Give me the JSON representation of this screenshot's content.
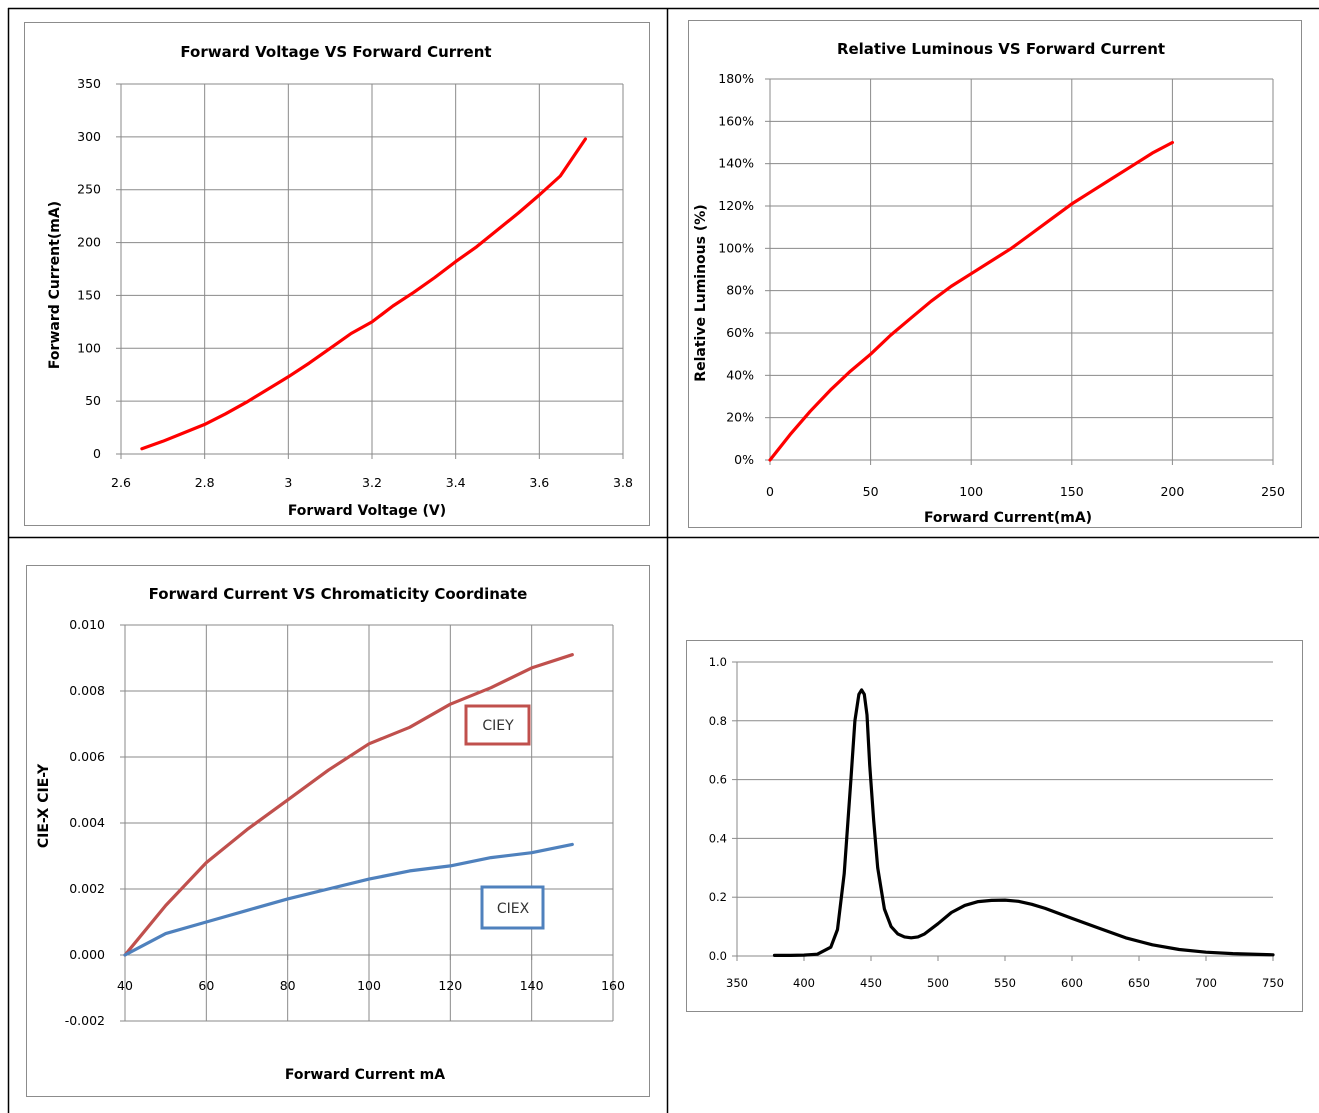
{
  "chart_data": [
    {
      "type": "line",
      "title": "Forward Voltage VS Forward Current",
      "xlabel": "Forward Voltage  (V)",
      "ylabel": "Forward Current(mA)",
      "xlim": [
        2.6,
        3.8
      ],
      "ylim": [
        0,
        350
      ],
      "xticks": [
        "2.6",
        "2.8",
        "3",
        "3.2",
        "3.4",
        "3.6",
        "3.8"
      ],
      "yticks": [
        "0",
        "50",
        "100",
        "150",
        "200",
        "250",
        "300",
        "350"
      ],
      "grid": true,
      "series": [
        {
          "color": "#ff0000",
          "x": [
            2.65,
            2.7,
            2.75,
            2.8,
            2.85,
            2.9,
            2.95,
            3.0,
            3.05,
            3.1,
            3.15,
            3.2,
            3.25,
            3.3,
            3.35,
            3.4,
            3.45,
            3.5,
            3.55,
            3.6,
            3.65,
            3.71
          ],
          "y": [
            5,
            12,
            20,
            28,
            38,
            49,
            61,
            73,
            86,
            100,
            114,
            125,
            140,
            153,
            167,
            182,
            196,
            212,
            228,
            245,
            263,
            298
          ]
        }
      ]
    },
    {
      "type": "line",
      "title": "Relative Luminous VS Forward Current",
      "xlabel": "Forward Current(mA)",
      "ylabel": "Relative Luminous (%)",
      "xlim": [
        0,
        250
      ],
      "ylim": [
        0,
        180
      ],
      "xticks": [
        "0",
        "50",
        "100",
        "150",
        "200",
        "250"
      ],
      "yticks": [
        "0%",
        "20%",
        "40%",
        "60%",
        "80%",
        "100%",
        "120%",
        "140%",
        "160%",
        "180%"
      ],
      "grid": true,
      "series": [
        {
          "color": "#ff0000",
          "x": [
            0,
            10,
            20,
            30,
            40,
            50,
            60,
            70,
            80,
            90,
            100,
            110,
            120,
            130,
            140,
            150,
            160,
            170,
            180,
            190,
            200
          ],
          "y": [
            0,
            12,
            23,
            33,
            42,
            50,
            59,
            67,
            75,
            82,
            88,
            94,
            100,
            107,
            114,
            121,
            127,
            133,
            139,
            145,
            150
          ]
        }
      ]
    },
    {
      "type": "line",
      "title": "Forward Current VS Chromaticity Coordinate",
      "xlabel": "Forward Current mA",
      "ylabel": "CIE-X  CIE-Y",
      "xlim": [
        40,
        160
      ],
      "ylim": [
        -0.002,
        0.01
      ],
      "xticks": [
        "40",
        "60",
        "80",
        "100",
        "120",
        "140",
        "160"
      ],
      "yticks": [
        "-0.002",
        "0.000",
        "0.002",
        "0.004",
        "0.006",
        "0.008",
        "0.010"
      ],
      "grid": true,
      "annotations": [
        "CIEY",
        "CIEX"
      ],
      "series": [
        {
          "name": "CIEY",
          "color": "#c0504d",
          "x": [
            40,
            50,
            60,
            70,
            80,
            90,
            100,
            110,
            120,
            130,
            140,
            150
          ],
          "y": [
            0.0,
            0.0015,
            0.0028,
            0.0038,
            0.0047,
            0.0056,
            0.0064,
            0.0069,
            0.0076,
            0.0081,
            0.0087,
            0.0091
          ]
        },
        {
          "name": "CIEX",
          "color": "#4f81bd",
          "x": [
            40,
            50,
            60,
            70,
            80,
            90,
            100,
            110,
            120,
            130,
            140,
            150
          ],
          "y": [
            0.0,
            0.00065,
            0.001,
            0.00135,
            0.0017,
            0.002,
            0.0023,
            0.00255,
            0.0027,
            0.00295,
            0.0031,
            0.00335
          ]
        }
      ]
    },
    {
      "type": "line",
      "title": "",
      "xlabel": "",
      "ylabel": "",
      "xlim": [
        350,
        750
      ],
      "ylim": [
        0,
        1.0
      ],
      "xticks": [
        "350",
        "400",
        "450",
        "500",
        "550",
        "600",
        "650",
        "700",
        "750"
      ],
      "yticks": [
        "0.0",
        "0.2",
        "0.4",
        "0.6",
        "0.8",
        "1.0"
      ],
      "grid": true,
      "series": [
        {
          "color": "#000000",
          "x": [
            378,
            390,
            400,
            410,
            420,
            425,
            430,
            435,
            438,
            441,
            443,
            445,
            447,
            449,
            452,
            455,
            460,
            465,
            470,
            475,
            480,
            485,
            490,
            500,
            510,
            520,
            530,
            540,
            550,
            560,
            570,
            580,
            590,
            600,
            620,
            640,
            660,
            680,
            700,
            720,
            750
          ],
          "y": [
            0.002,
            0.002,
            0.003,
            0.006,
            0.03,
            0.09,
            0.28,
            0.6,
            0.8,
            0.89,
            0.905,
            0.89,
            0.82,
            0.65,
            0.46,
            0.3,
            0.16,
            0.1,
            0.075,
            0.065,
            0.062,
            0.065,
            0.075,
            0.11,
            0.148,
            0.172,
            0.185,
            0.189,
            0.19,
            0.186,
            0.176,
            0.162,
            0.145,
            0.128,
            0.095,
            0.062,
            0.038,
            0.022,
            0.013,
            0.008,
            0.004
          ]
        }
      ]
    }
  ]
}
